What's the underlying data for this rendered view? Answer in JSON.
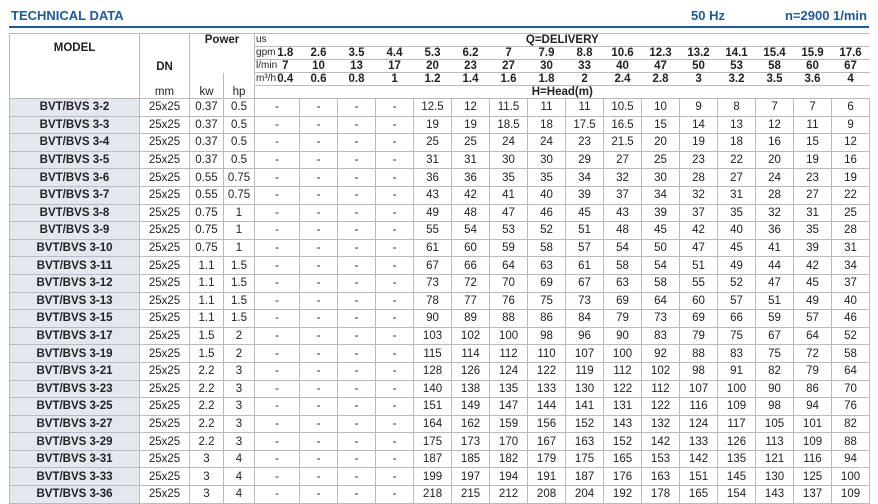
{
  "header": {
    "title": "TECHNICAL DATA",
    "frequency": "50 Hz",
    "speed": "n=2900 1/min"
  },
  "table": {
    "model_label": "MODEL",
    "dn_label": "DN",
    "dn_unit": "mm",
    "power_label": "Power",
    "kw_label": "kw",
    "hp_label": "hp",
    "delivery_label": "Q=DELIVERY",
    "head_label": "H=Head(m)",
    "flow_units": [
      "us",
      "gpm",
      "l/min",
      "m³/h"
    ],
    "flow_gpm": [
      1.8,
      2.6,
      3.5,
      4.4,
      5.3,
      6.2,
      7,
      7.9,
      8.8,
      10.6,
      12.3,
      13.2,
      14.1,
      15.4,
      15.9,
      17.6
    ],
    "flow_lmin": [
      7,
      10,
      13,
      17,
      20,
      23,
      27,
      30,
      33,
      40,
      47,
      50,
      53,
      58,
      60,
      67
    ],
    "flow_m3h": [
      0.4,
      0.6,
      0.8,
      1,
      1.2,
      1.4,
      1.6,
      1.8,
      2,
      2.4,
      2.8,
      3,
      3.2,
      3.5,
      3.6,
      4
    ],
    "rows": [
      [
        "BVT/BVS 3-2",
        "25x25",
        0.37,
        0.5,
        "-",
        "-",
        "-",
        "-",
        12.5,
        12,
        11.5,
        11,
        11,
        10.5,
        10,
        9,
        8,
        7,
        7,
        6
      ],
      [
        "BVT/BVS 3-3",
        "25x25",
        0.37,
        0.5,
        "-",
        "-",
        "-",
        "-",
        19,
        19,
        18.5,
        18,
        17.5,
        16.5,
        15,
        14,
        13,
        12,
        11,
        9
      ],
      [
        "BVT/BVS 3-4",
        "25x25",
        0.37,
        0.5,
        "-",
        "-",
        "-",
        "-",
        25,
        25,
        24,
        24,
        23,
        21.5,
        20,
        19,
        18,
        16,
        15,
        12
      ],
      [
        "BVT/BVS 3-5",
        "25x25",
        0.37,
        0.5,
        "-",
        "-",
        "-",
        "-",
        31,
        31,
        30,
        30,
        29,
        27,
        25,
        23,
        22,
        20,
        19,
        16
      ],
      [
        "BVT/BVS 3-6",
        "25x25",
        0.55,
        0.75,
        "-",
        "-",
        "-",
        "-",
        36,
        36,
        35,
        35,
        34,
        32,
        30,
        28,
        27,
        24,
        23,
        19
      ],
      [
        "BVT/BVS 3-7",
        "25x25",
        0.55,
        0.75,
        "-",
        "-",
        "-",
        "-",
        43,
        42,
        41,
        40,
        39,
        37,
        34,
        32,
        31,
        28,
        27,
        22
      ],
      [
        "BVT/BVS 3-8",
        "25x25",
        0.75,
        1,
        "-",
        "-",
        "-",
        "-",
        49,
        48,
        47,
        46,
        45,
        43,
        39,
        37,
        35,
        32,
        31,
        25
      ],
      [
        "BVT/BVS 3-9",
        "25x25",
        0.75,
        1,
        "-",
        "-",
        "-",
        "-",
        55,
        54,
        53,
        52,
        51,
        48,
        45,
        42,
        40,
        36,
        35,
        28
      ],
      [
        "BVT/BVS 3-10",
        "25x25",
        0.75,
        1,
        "-",
        "-",
        "-",
        "-",
        61,
        60,
        59,
        58,
        57,
        54,
        50,
        47,
        45,
        41,
        39,
        31
      ],
      [
        "BVT/BVS 3-11",
        "25x25",
        1.1,
        1.5,
        "-",
        "-",
        "-",
        "-",
        67,
        66,
        64,
        63,
        61,
        58,
        54,
        51,
        49,
        44,
        42,
        34
      ],
      [
        "BVT/BVS 3-12",
        "25x25",
        1.1,
        1.5,
        "-",
        "-",
        "-",
        "-",
        73,
        72,
        70,
        69,
        67,
        63,
        58,
        55,
        52,
        47,
        45,
        37
      ],
      [
        "BVT/BVS 3-13",
        "25x25",
        1.1,
        1.5,
        "-",
        "-",
        "-",
        "-",
        78,
        77,
        76,
        75,
        73,
        69,
        64,
        60,
        57,
        51,
        49,
        40
      ],
      [
        "BVT/BVS 3-15",
        "25x25",
        1.1,
        1.5,
        "-",
        "-",
        "-",
        "-",
        90,
        89,
        88,
        86,
        84,
        79,
        73,
        69,
        66,
        59,
        57,
        46
      ],
      [
        "BVT/BVS 3-17",
        "25x25",
        1.5,
        2,
        "-",
        "-",
        "-",
        "-",
        103,
        102,
        100,
        98,
        96,
        90,
        83,
        79,
        75,
        67,
        64,
        52
      ],
      [
        "BVT/BVS 3-19",
        "25x25",
        1.5,
        2,
        "-",
        "-",
        "-",
        "-",
        115,
        114,
        112,
        110,
        107,
        100,
        92,
        88,
        83,
        75,
        72,
        58
      ],
      [
        "BVT/BVS 3-21",
        "25x25",
        2.2,
        3,
        "-",
        "-",
        "-",
        "-",
        128,
        126,
        124,
        122,
        119,
        112,
        102,
        98,
        91,
        82,
        79,
        64
      ],
      [
        "BVT/BVS 3-23",
        "25x25",
        2.2,
        3,
        "-",
        "-",
        "-",
        "-",
        140,
        138,
        135,
        133,
        130,
        122,
        112,
        107,
        100,
        90,
        86,
        70
      ],
      [
        "BVT/BVS 3-25",
        "25x25",
        2.2,
        3,
        "-",
        "-",
        "-",
        "-",
        151,
        149,
        147,
        144,
        141,
        131,
        122,
        116,
        109,
        98,
        94,
        76
      ],
      [
        "BVT/BVS 3-27",
        "25x25",
        2.2,
        3,
        "-",
        "-",
        "-",
        "-",
        164,
        162,
        159,
        156,
        152,
        143,
        132,
        124,
        117,
        105,
        101,
        82
      ],
      [
        "BVT/BVS 3-29",
        "25x25",
        2.2,
        3,
        "-",
        "-",
        "-",
        "-",
        175,
        173,
        170,
        167,
        163,
        152,
        142,
        133,
        126,
        113,
        109,
        88
      ],
      [
        "BVT/BVS 3-31",
        "25x25",
        3,
        4,
        "-",
        "-",
        "-",
        "-",
        187,
        185,
        182,
        179,
        175,
        165,
        153,
        142,
        135,
        121,
        116,
        94
      ],
      [
        "BVT/BVS 3-33",
        "25x25",
        3,
        4,
        "-",
        "-",
        "-",
        "-",
        199,
        197,
        194,
        191,
        187,
        176,
        163,
        151,
        145,
        130,
        125,
        100
      ],
      [
        "BVT/BVS 3-36",
        "25x25",
        3,
        4,
        "-",
        "-",
        "-",
        "-",
        218,
        215,
        212,
        208,
        204,
        192,
        178,
        165,
        154,
        143,
        137,
        109
      ]
    ]
  }
}
